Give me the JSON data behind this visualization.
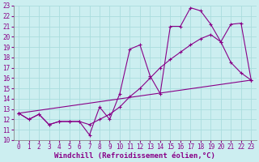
{
  "xlabel": "Windchill (Refroidissement éolien,°C)",
  "xlim": [
    -0.5,
    23.5
  ],
  "ylim": [
    10,
    23
  ],
  "background_color": "#cceef0",
  "grid_color": "#aadddd",
  "line_color": "#880088",
  "line1_x": [
    0,
    1,
    2,
    3,
    4,
    5,
    6,
    7,
    8,
    9,
    10,
    11,
    12,
    13,
    14,
    15,
    16,
    17,
    18,
    19,
    20,
    21,
    22,
    23
  ],
  "line1_y": [
    12.6,
    12.0,
    12.5,
    11.5,
    11.8,
    11.8,
    11.8,
    10.5,
    13.2,
    12.0,
    14.5,
    18.8,
    19.2,
    16.2,
    14.5,
    21.0,
    21.0,
    22.8,
    22.5,
    21.2,
    19.5,
    17.5,
    16.5,
    15.8
  ],
  "line2_x": [
    0,
    1,
    2,
    3,
    4,
    5,
    6,
    7,
    8,
    9,
    10,
    11,
    12,
    13,
    14,
    15,
    16,
    17,
    18,
    19,
    20,
    21,
    22,
    23
  ],
  "line2_y": [
    12.6,
    12.0,
    12.5,
    11.5,
    11.8,
    11.8,
    11.8,
    11.5,
    12.0,
    12.5,
    13.2,
    14.2,
    15.0,
    16.0,
    17.0,
    17.8,
    18.5,
    19.2,
    19.8,
    20.2,
    19.5,
    21.2,
    21.3,
    15.8
  ],
  "line3_x": [
    0,
    23
  ],
  "line3_y": [
    12.6,
    15.8
  ],
  "xticks": [
    0,
    1,
    2,
    3,
    4,
    5,
    6,
    7,
    8,
    9,
    10,
    11,
    12,
    13,
    14,
    15,
    16,
    17,
    18,
    19,
    20,
    21,
    22,
    23
  ],
  "yticks": [
    10,
    11,
    12,
    13,
    14,
    15,
    16,
    17,
    18,
    19,
    20,
    21,
    22,
    23
  ],
  "tick_fontsize": 5.5,
  "xlabel_fontsize": 6.5,
  "markersize": 2.0
}
